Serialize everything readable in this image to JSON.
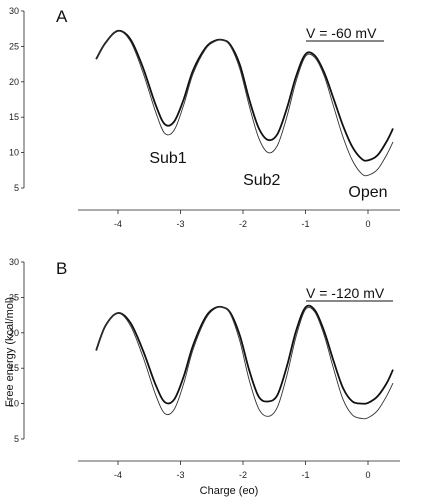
{
  "chart_data": [
    {
      "type": "line",
      "panel_label": "A",
      "annotation": "V = -60 mV",
      "state_labels": [
        {
          "text": "Sub1",
          "x": -3.2
        },
        {
          "text": "Sub2",
          "x": -1.7
        },
        {
          "text": "Open",
          "x": 0.0
        }
      ],
      "xlim": [
        -4.4,
        0.4
      ],
      "ylim": [
        5,
        30
      ],
      "x_ticks": [
        -4,
        -3,
        -2,
        -1,
        0
      ],
      "x_tick_labels": [
        "-4",
        "-3",
        "-2",
        "-1",
        "0"
      ],
      "y_ticks": [
        5,
        10,
        15,
        20,
        25,
        30
      ],
      "y_tick_labels": [
        "5",
        "10",
        "15",
        "20",
        "25",
        "30"
      ],
      "series": [
        {
          "style": "solid",
          "x": [
            -4.35,
            -4.2,
            -4.0,
            -3.8,
            -3.6,
            -3.4,
            -3.25,
            -3.1,
            -2.95,
            -2.8,
            -2.6,
            -2.45,
            -2.32,
            -2.2,
            -2.05,
            -1.9,
            -1.75,
            -1.6,
            -1.45,
            -1.3,
            -1.15,
            -1.0,
            -0.85,
            -0.7,
            -0.55,
            -0.4,
            -0.25,
            -0.1,
            0.0,
            0.15,
            0.3,
            0.4
          ],
          "y": [
            23.2,
            25.5,
            27.2,
            26.0,
            22.0,
            16.8,
            14.0,
            14.4,
            17.5,
            21.6,
            24.8,
            25.8,
            25.9,
            25.2,
            22.4,
            17.5,
            13.5,
            11.8,
            12.6,
            16.2,
            20.8,
            23.9,
            23.7,
            21.3,
            17.6,
            13.8,
            10.8,
            9.1,
            8.9,
            9.6,
            11.6,
            13.4
          ]
        },
        {
          "style": "dotted",
          "x": [
            -4.35,
            -4.2,
            -4.0,
            -3.8,
            -3.6,
            -3.4,
            -3.25,
            -3.1,
            -2.95,
            -2.8,
            -2.6,
            -2.45,
            -2.32,
            -2.2,
            -2.05,
            -1.9,
            -1.75,
            -1.6,
            -1.45,
            -1.3,
            -1.15,
            -1.0,
            -0.85,
            -0.7,
            -0.55,
            -0.4,
            -0.25,
            -0.1,
            0.0,
            0.15,
            0.3,
            0.4
          ],
          "y": [
            23.2,
            25.5,
            27.2,
            25.7,
            21.3,
            15.8,
            12.7,
            13.2,
            16.7,
            21.1,
            24.6,
            25.7,
            25.9,
            25.0,
            21.8,
            16.6,
            12.1,
            10.0,
            11.0,
            15.0,
            20.1,
            23.6,
            23.4,
            20.8,
            16.5,
            12.2,
            8.9,
            7.0,
            6.8,
            7.6,
            9.7,
            11.5
          ]
        }
      ]
    },
    {
      "type": "line",
      "panel_label": "B",
      "annotation": "V = -120 mV",
      "state_labels": [],
      "xlim": [
        -4.4,
        0.4
      ],
      "ylim": [
        5,
        30
      ],
      "x_ticks": [
        -4,
        -3,
        -2,
        -1,
        0
      ],
      "x_tick_labels": [
        "-4",
        "-3",
        "-2",
        "-1",
        "0"
      ],
      "y_ticks": [
        5,
        10,
        15,
        20,
        25,
        30
      ],
      "y_tick_labels": [
        "5",
        "10",
        "15",
        "20",
        "25",
        "30"
      ],
      "xlabel": "Charge (eo)",
      "ylabel": "Free energy (kcal/mol)",
      "series": [
        {
          "style": "solid",
          "x": [
            -4.35,
            -4.2,
            -4.0,
            -3.8,
            -3.6,
            -3.4,
            -3.25,
            -3.1,
            -2.95,
            -2.8,
            -2.6,
            -2.45,
            -2.32,
            -2.2,
            -2.05,
            -1.9,
            -1.75,
            -1.6,
            -1.45,
            -1.3,
            -1.15,
            -1.0,
            -0.85,
            -0.7,
            -0.55,
            -0.4,
            -0.25,
            -0.1,
            0.0,
            0.15,
            0.3,
            0.4
          ],
          "y": [
            17.5,
            21.0,
            22.8,
            21.4,
            17.5,
            12.7,
            10.2,
            10.6,
            13.8,
            18.2,
            22.2,
            23.5,
            23.6,
            22.8,
            19.6,
            14.7,
            11.0,
            10.3,
            11.2,
            15.2,
            20.3,
            23.6,
            23.2,
            20.2,
            16.0,
            12.2,
            10.3,
            10.0,
            10.1,
            11.0,
            12.9,
            14.8
          ]
        },
        {
          "style": "dotted",
          "x": [
            -4.35,
            -4.2,
            -4.0,
            -3.8,
            -3.6,
            -3.4,
            -3.25,
            -3.1,
            -2.95,
            -2.8,
            -2.6,
            -2.45,
            -2.32,
            -2.2,
            -2.05,
            -1.9,
            -1.75,
            -1.6,
            -1.45,
            -1.3,
            -1.15,
            -1.0,
            -0.85,
            -0.7,
            -0.55,
            -0.4,
            -0.25,
            -0.1,
            0.0,
            0.15,
            0.3,
            0.4
          ],
          "y": [
            17.5,
            21.0,
            22.8,
            21.0,
            16.6,
            11.3,
            8.6,
            9.2,
            12.8,
            17.6,
            21.9,
            23.4,
            23.6,
            22.6,
            18.8,
            13.3,
            9.3,
            8.2,
            9.5,
            13.9,
            19.5,
            23.3,
            22.9,
            19.6,
            14.9,
            10.6,
            8.4,
            7.9,
            8.0,
            9.0,
            11.1,
            12.9
          ]
        }
      ]
    }
  ]
}
